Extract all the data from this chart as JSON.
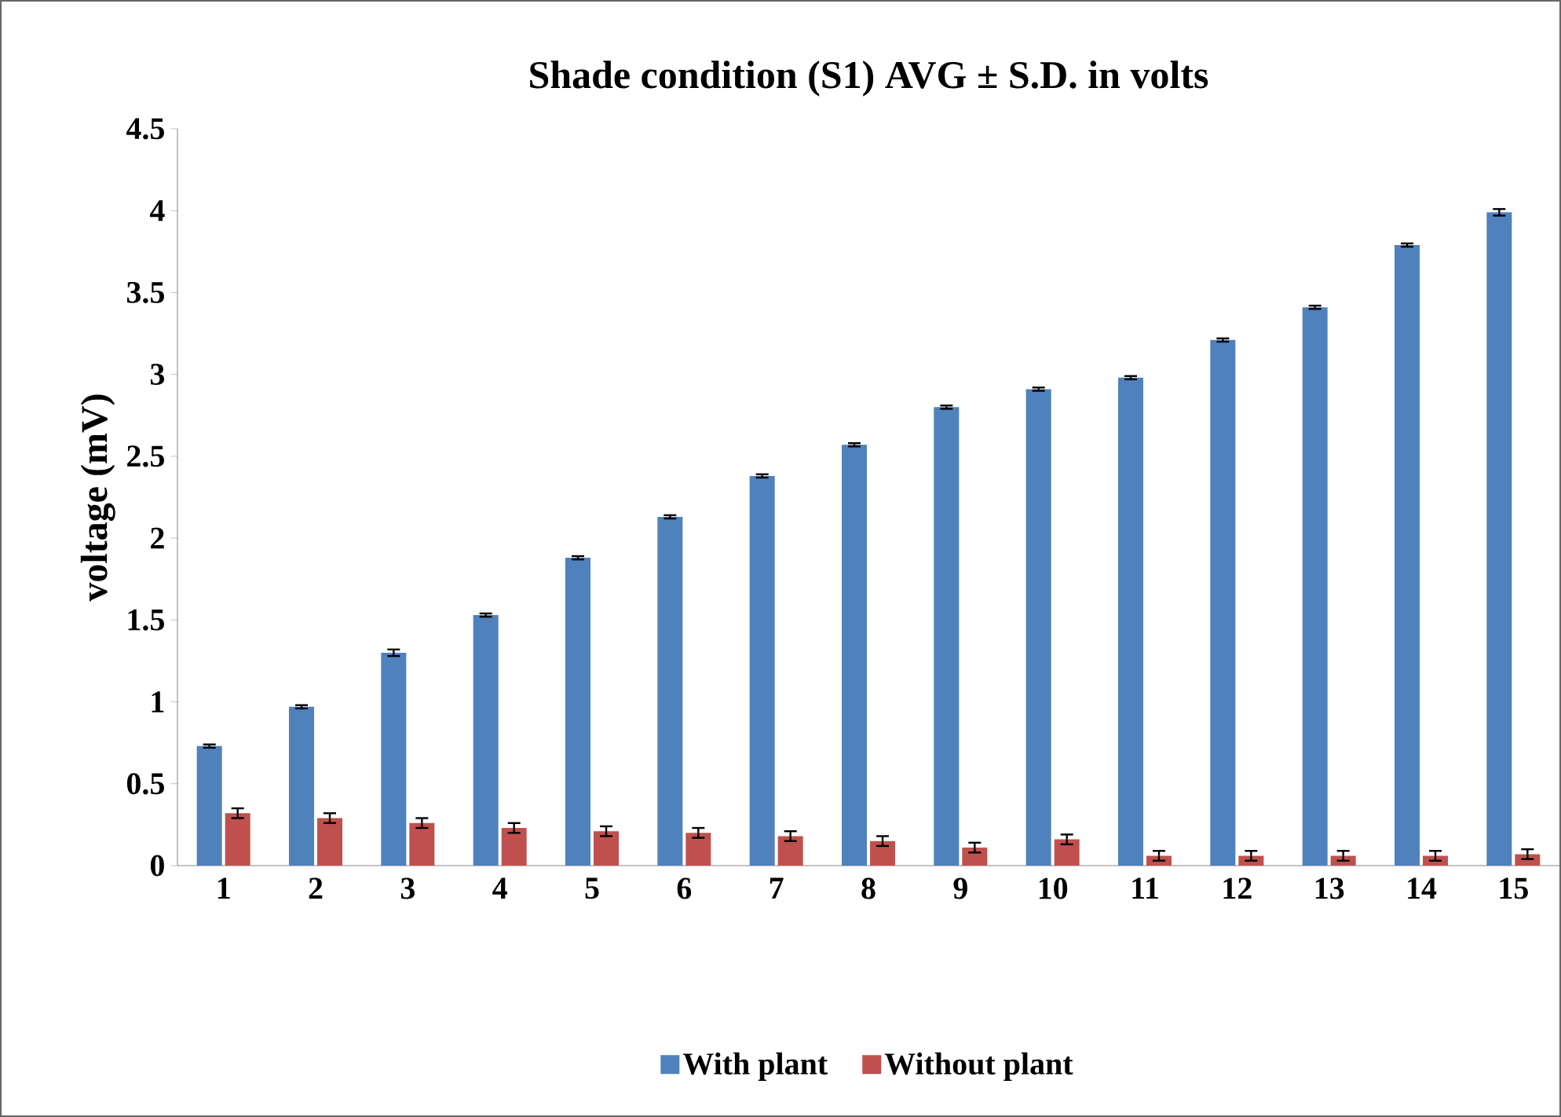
{
  "chart_data": {
    "type": "bar",
    "title": "Shade condition (S1) AVG ± S.D. in volts",
    "ylabel": "voltage (mV)",
    "categories": [
      "1",
      "2",
      "3",
      "4",
      "5",
      "6",
      "7",
      "8",
      "9",
      "10",
      "11",
      "12",
      "13",
      "14",
      "15"
    ],
    "series": [
      {
        "name": "With plant",
        "color": "#4f81bd",
        "values": [
          0.73,
          0.97,
          1.3,
          1.53,
          1.88,
          2.13,
          2.38,
          2.57,
          2.8,
          2.91,
          2.98,
          3.21,
          3.41,
          3.79,
          3.99
        ],
        "errors": [
          0.01,
          0.01,
          0.02,
          0.01,
          0.01,
          0.01,
          0.01,
          0.01,
          0.01,
          0.01,
          0.01,
          0.01,
          0.01,
          0.01,
          0.02
        ]
      },
      {
        "name": "Without plant",
        "color": "#c0504d",
        "values": [
          0.32,
          0.29,
          0.26,
          0.23,
          0.21,
          0.2,
          0.18,
          0.15,
          0.11,
          0.16,
          0.06,
          0.06,
          0.06,
          0.06,
          0.07
        ],
        "errors": [
          0.03,
          0.03,
          0.03,
          0.03,
          0.03,
          0.03,
          0.03,
          0.03,
          0.03,
          0.03,
          0.03,
          0.03,
          0.03,
          0.03,
          0.03
        ]
      }
    ],
    "ylim": [
      0,
      4.5
    ],
    "yticks": [
      0,
      0.5,
      1,
      1.5,
      2,
      2.5,
      3,
      3.5,
      4,
      4.5
    ],
    "grid": false,
    "legend": "bottom"
  }
}
